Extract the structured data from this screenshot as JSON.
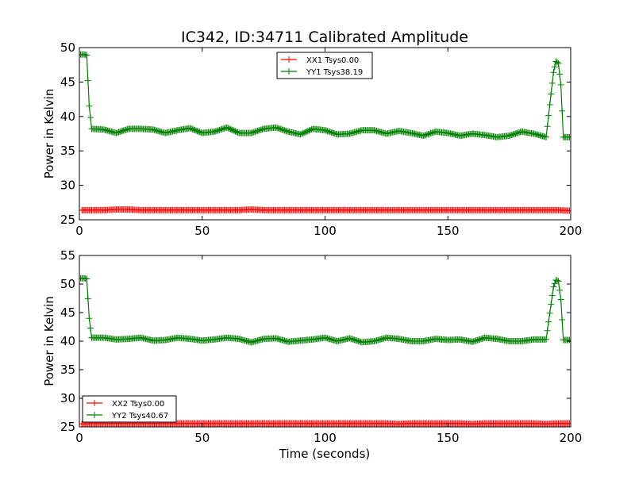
{
  "chart_data": [
    {
      "type": "line",
      "title": "IC342, ID:34711 Calibrated Amplitude",
      "xlabel": "",
      "ylabel": "Power in Kelvin",
      "xlim": [
        0,
        200
      ],
      "ylim": [
        25,
        50
      ],
      "xticks": [
        0,
        50,
        100,
        150,
        200
      ],
      "yticks": [
        25,
        30,
        35,
        40,
        45,
        50
      ],
      "legend_position": "top-center",
      "series": [
        {
          "name": "XX1 Tsys0.00",
          "color": "#ff0000",
          "marker": "+",
          "x": [
            1,
            5,
            10,
            15,
            20,
            25,
            30,
            35,
            40,
            45,
            50,
            55,
            60,
            65,
            70,
            75,
            80,
            85,
            90,
            95,
            100,
            105,
            110,
            115,
            120,
            125,
            130,
            135,
            140,
            145,
            150,
            155,
            160,
            165,
            170,
            175,
            180,
            185,
            190,
            195,
            200
          ],
          "y": [
            26.4,
            26.4,
            26.4,
            26.5,
            26.5,
            26.4,
            26.4,
            26.4,
            26.4,
            26.4,
            26.4,
            26.4,
            26.4,
            26.4,
            26.5,
            26.4,
            26.4,
            26.4,
            26.4,
            26.4,
            26.4,
            26.4,
            26.4,
            26.4,
            26.4,
            26.4,
            26.4,
            26.4,
            26.4,
            26.4,
            26.4,
            26.4,
            26.4,
            26.4,
            26.4,
            26.4,
            26.4,
            26.4,
            26.4,
            26.4,
            26.3
          ]
        },
        {
          "name": "YY1 Tsys38.19",
          "color": "#008000",
          "marker": "+",
          "x": [
            0,
            1,
            2,
            3,
            4,
            5,
            10,
            15,
            20,
            25,
            30,
            35,
            40,
            45,
            50,
            55,
            60,
            65,
            70,
            75,
            80,
            85,
            90,
            95,
            100,
            105,
            110,
            115,
            120,
            125,
            130,
            135,
            140,
            145,
            150,
            155,
            160,
            165,
            170,
            175,
            180,
            185,
            190,
            193,
            194,
            195,
            196,
            197,
            198,
            200
          ],
          "y": [
            49,
            49,
            49,
            48.9,
            41.5,
            38.2,
            38.1,
            37.6,
            38.2,
            38.2,
            38.1,
            37.6,
            38,
            38.3,
            37.6,
            37.8,
            38.4,
            37.6,
            37.6,
            38.2,
            38.4,
            37.8,
            37.4,
            38.2,
            38,
            37.4,
            37.5,
            38,
            38,
            37.5,
            37.9,
            37.6,
            37.2,
            37.8,
            37.6,
            37.2,
            37.5,
            37.3,
            37,
            37.2,
            37.8,
            37.5,
            37,
            46.4,
            48,
            47.7,
            44.6,
            37,
            37,
            37
          ]
        }
      ]
    },
    {
      "type": "line",
      "title": "",
      "xlabel": "Time (seconds)",
      "ylabel": "Power in Kelvin",
      "xlim": [
        0,
        200
      ],
      "ylim": [
        25,
        55
      ],
      "xticks": [
        0,
        50,
        100,
        150,
        200
      ],
      "yticks": [
        25,
        30,
        35,
        40,
        45,
        50,
        55
      ],
      "legend_position": "lower-left",
      "series": [
        {
          "name": "XX2 Tsys0.00",
          "color": "#ff0000",
          "marker": "+",
          "x": [
            1,
            5,
            10,
            15,
            20,
            25,
            30,
            35,
            40,
            45,
            50,
            55,
            60,
            65,
            70,
            75,
            80,
            85,
            90,
            95,
            100,
            105,
            110,
            115,
            120,
            125,
            130,
            135,
            140,
            145,
            150,
            155,
            160,
            165,
            170,
            175,
            180,
            185,
            190,
            195,
            200
          ],
          "y": [
            25.5,
            25.6,
            25.6,
            25.6,
            25.6,
            25.6,
            25.6,
            25.6,
            25.6,
            25.6,
            25.6,
            25.6,
            25.6,
            25.6,
            25.6,
            25.6,
            25.6,
            25.6,
            25.6,
            25.6,
            25.6,
            25.6,
            25.6,
            25.6,
            25.6,
            25.6,
            25.5,
            25.6,
            25.6,
            25.6,
            25.6,
            25.6,
            25.5,
            25.6,
            25.6,
            25.6,
            25.6,
            25.6,
            25.5,
            25.6,
            25.6
          ]
        },
        {
          "name": "YY2 Tsys40.67",
          "color": "#008000",
          "marker": "+",
          "x": [
            0,
            1,
            2,
            3,
            4,
            5,
            10,
            15,
            20,
            25,
            30,
            35,
            40,
            45,
            50,
            55,
            60,
            65,
            70,
            75,
            80,
            85,
            90,
            95,
            100,
            105,
            110,
            115,
            120,
            125,
            130,
            135,
            140,
            145,
            150,
            155,
            160,
            165,
            170,
            175,
            180,
            185,
            190,
            193,
            194,
            195,
            196,
            197,
            198,
            200
          ],
          "y": [
            51,
            51,
            51,
            50.9,
            44,
            40.6,
            40.6,
            40.3,
            40.4,
            40.6,
            40.1,
            40.2,
            40.6,
            40.4,
            40.1,
            40.3,
            40.6,
            40.4,
            39.8,
            40.4,
            40.5,
            39.9,
            40.1,
            40.3,
            40.6,
            40,
            40.5,
            39.8,
            40,
            40.6,
            40.4,
            40,
            40,
            40.4,
            40.2,
            40.3,
            39.9,
            40.6,
            40.4,
            40,
            40,
            40.3,
            40.3,
            49.5,
            50.7,
            50.5,
            47.3,
            40.2,
            40.2,
            40.2
          ]
        }
      ]
    }
  ]
}
